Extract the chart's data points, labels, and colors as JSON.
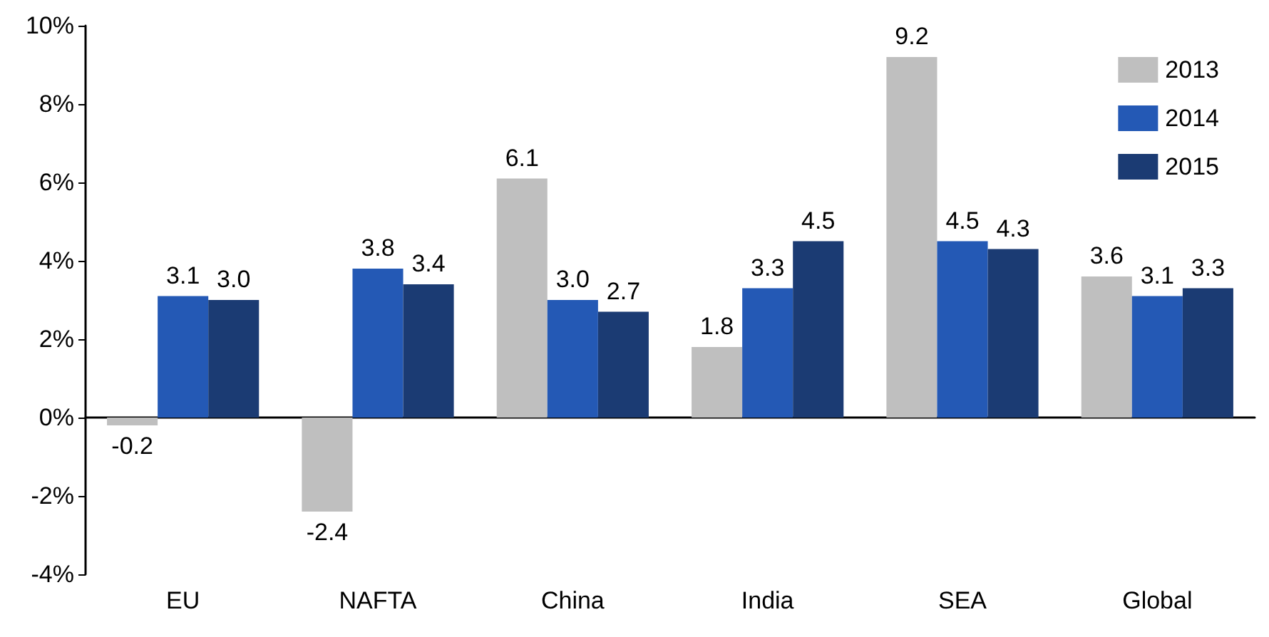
{
  "chart_data": {
    "type": "bar",
    "categories": [
      "EU",
      "NAFTA",
      "China",
      "India",
      "SEA",
      "Global"
    ],
    "series": [
      {
        "name": "2013",
        "color": "#bfbfbf",
        "values": [
          -0.2,
          -2.4,
          6.1,
          1.8,
          9.2,
          3.6
        ],
        "value_labels": [
          "-0.2",
          "-2.4",
          "6.1",
          "1.8",
          "9.2",
          "3.6"
        ]
      },
      {
        "name": "2014",
        "color": "#2459b5",
        "values": [
          3.1,
          3.8,
          3.0,
          3.3,
          4.5,
          3.1
        ],
        "value_labels": [
          "3.1",
          "3.8",
          "3.0",
          "3.3",
          "4.5",
          "3.1"
        ]
      },
      {
        "name": "2015",
        "color": "#1b3b73",
        "values": [
          3.0,
          3.4,
          2.7,
          4.5,
          4.3,
          3.3
        ],
        "value_labels": [
          "3.0",
          "3.4",
          "2.7",
          "4.5",
          "4.3",
          "3.3"
        ]
      }
    ],
    "ylim": [
      -4,
      10
    ],
    "yticks": [
      {
        "value": -4,
        "label": "-4%"
      },
      {
        "value": -2,
        "label": "-2%"
      },
      {
        "value": 0,
        "label": "0%"
      },
      {
        "value": 2,
        "label": "2%"
      },
      {
        "value": 4,
        "label": "4%"
      },
      {
        "value": 6,
        "label": "6%"
      },
      {
        "value": 8,
        "label": "8%"
      },
      {
        "value": 10,
        "label": "10%"
      }
    ],
    "legend": "top right"
  }
}
